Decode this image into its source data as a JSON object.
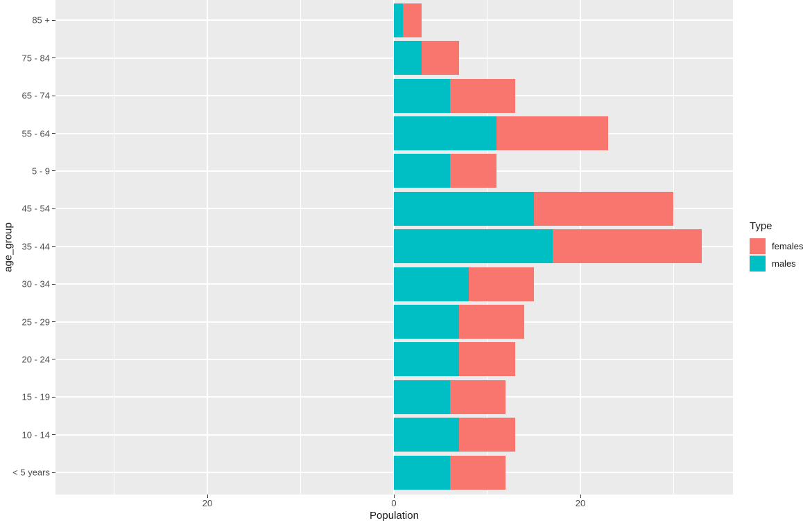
{
  "chart_data": {
    "type": "bar",
    "orientation": "horizontal",
    "stacked": true,
    "title": "",
    "xlabel": "Population",
    "ylabel": "age_group",
    "categories": [
      "85 +",
      "75 - 84",
      "65 - 74",
      "55 - 64",
      "5 - 9",
      "45 - 54",
      "35 - 44",
      "30 - 34",
      "25 - 29",
      "20 - 24",
      "15 - 19",
      "10 - 14",
      "< 5 years"
    ],
    "series": [
      {
        "name": "males",
        "color": "#00BFC4",
        "values": [
          1,
          3,
          6,
          11,
          6,
          15,
          17,
          8,
          7,
          7,
          6,
          7,
          6
        ]
      },
      {
        "name": "females",
        "color": "#F8766D",
        "values": [
          2,
          4,
          7,
          12,
          5,
          15,
          16,
          7,
          7,
          6,
          6,
          6,
          6
        ]
      }
    ],
    "xlim": [
      -36.28,
      36.36
    ],
    "x_major_ticks": [
      {
        "value": -20,
        "label": "20"
      },
      {
        "value": 0,
        "label": "0"
      },
      {
        "value": 20,
        "label": "20"
      }
    ],
    "x_minor_ticks": [
      -30,
      -10,
      10,
      30
    ],
    "grid": true,
    "legend_position": "right"
  },
  "axes": {
    "x_title": "Population",
    "y_title": "age_group"
  },
  "legend": {
    "title": "Type",
    "entries": [
      {
        "label": "females",
        "color": "#F8766D"
      },
      {
        "label": "males",
        "color": "#00BFC4"
      }
    ]
  },
  "colors": {
    "panel_bg": "#EBEBEB",
    "grid": "#FFFFFF",
    "tick_text": "#4D4D4D",
    "title_text": "#1A1A1A",
    "female": "#F8766D",
    "male": "#00BFC4"
  }
}
